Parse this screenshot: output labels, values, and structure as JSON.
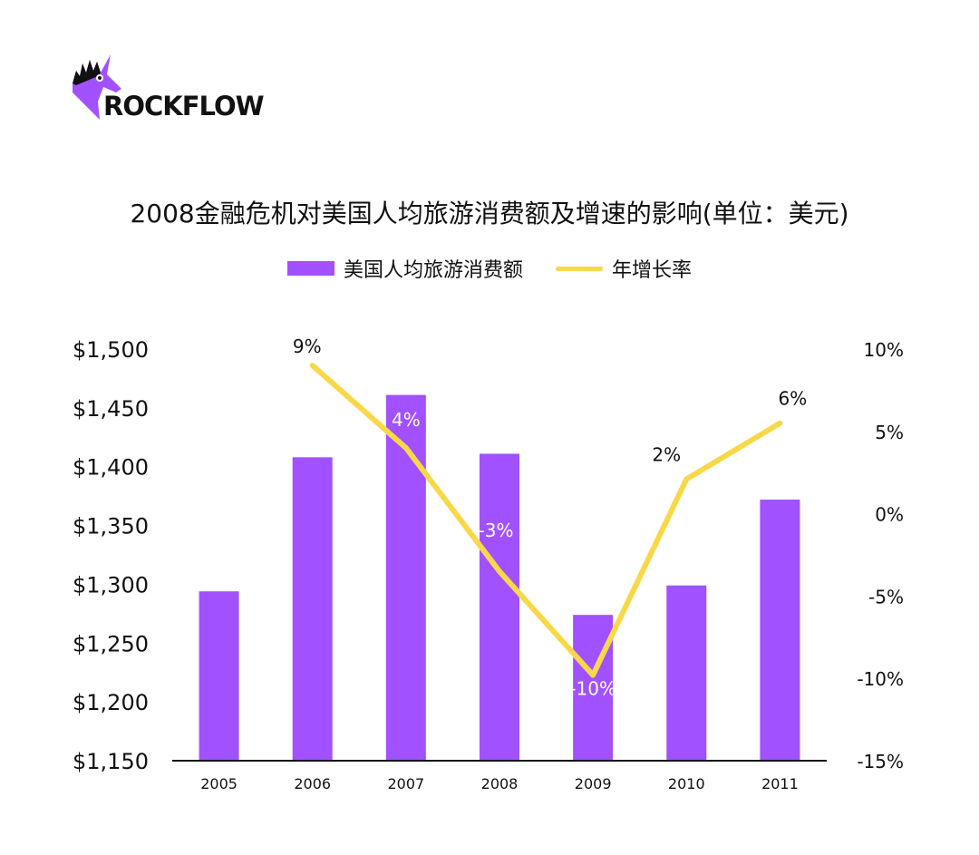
{
  "brand": {
    "name": "ROCKFLOW",
    "accent": "#a151ff"
  },
  "chart_data": {
    "type": "bar+line",
    "title": "2008金融危机对美国人均旅游消费额及增速的影响(单位：美元)",
    "categories": [
      "2005",
      "2006",
      "2007",
      "2008",
      "2009",
      "2010",
      "2011"
    ],
    "series": [
      {
        "name": "美国人均旅游消费额",
        "type": "bar",
        "axis": "left",
        "color": "#a151ff",
        "values": [
          1294,
          1408,
          1461,
          1411,
          1274,
          1299,
          1372
        ]
      },
      {
        "name": "年增长率",
        "type": "line",
        "axis": "right",
        "color": "#f8d848",
        "x": [
          "2006",
          "2007",
          "2008",
          "2009",
          "2010",
          "2011"
        ],
        "values": [
          9,
          4,
          -3.5,
          -9.8,
          2.1,
          5.5
        ],
        "labels": [
          "9%",
          "4%",
          "-3%",
          "-10%",
          "2%",
          "6%"
        ]
      }
    ],
    "left_axis": {
      "ylim": [
        1150,
        1500
      ],
      "ticks": [
        "$1,500",
        "$1,450",
        "$1,400",
        "$1,350",
        "$1,300",
        "$1,250",
        "$1,200",
        "$1,150"
      ],
      "tick_values": [
        1500,
        1450,
        1400,
        1350,
        1300,
        1250,
        1200,
        1150
      ]
    },
    "right_axis": {
      "ylim": [
        -15,
        10
      ],
      "ticks": [
        "10%",
        "5%",
        "0%",
        "-5%",
        "-10%",
        "-15%"
      ],
      "tick_values": [
        10,
        5,
        0,
        -5,
        -10,
        -15
      ]
    },
    "legend": "top-center",
    "grid": false
  }
}
